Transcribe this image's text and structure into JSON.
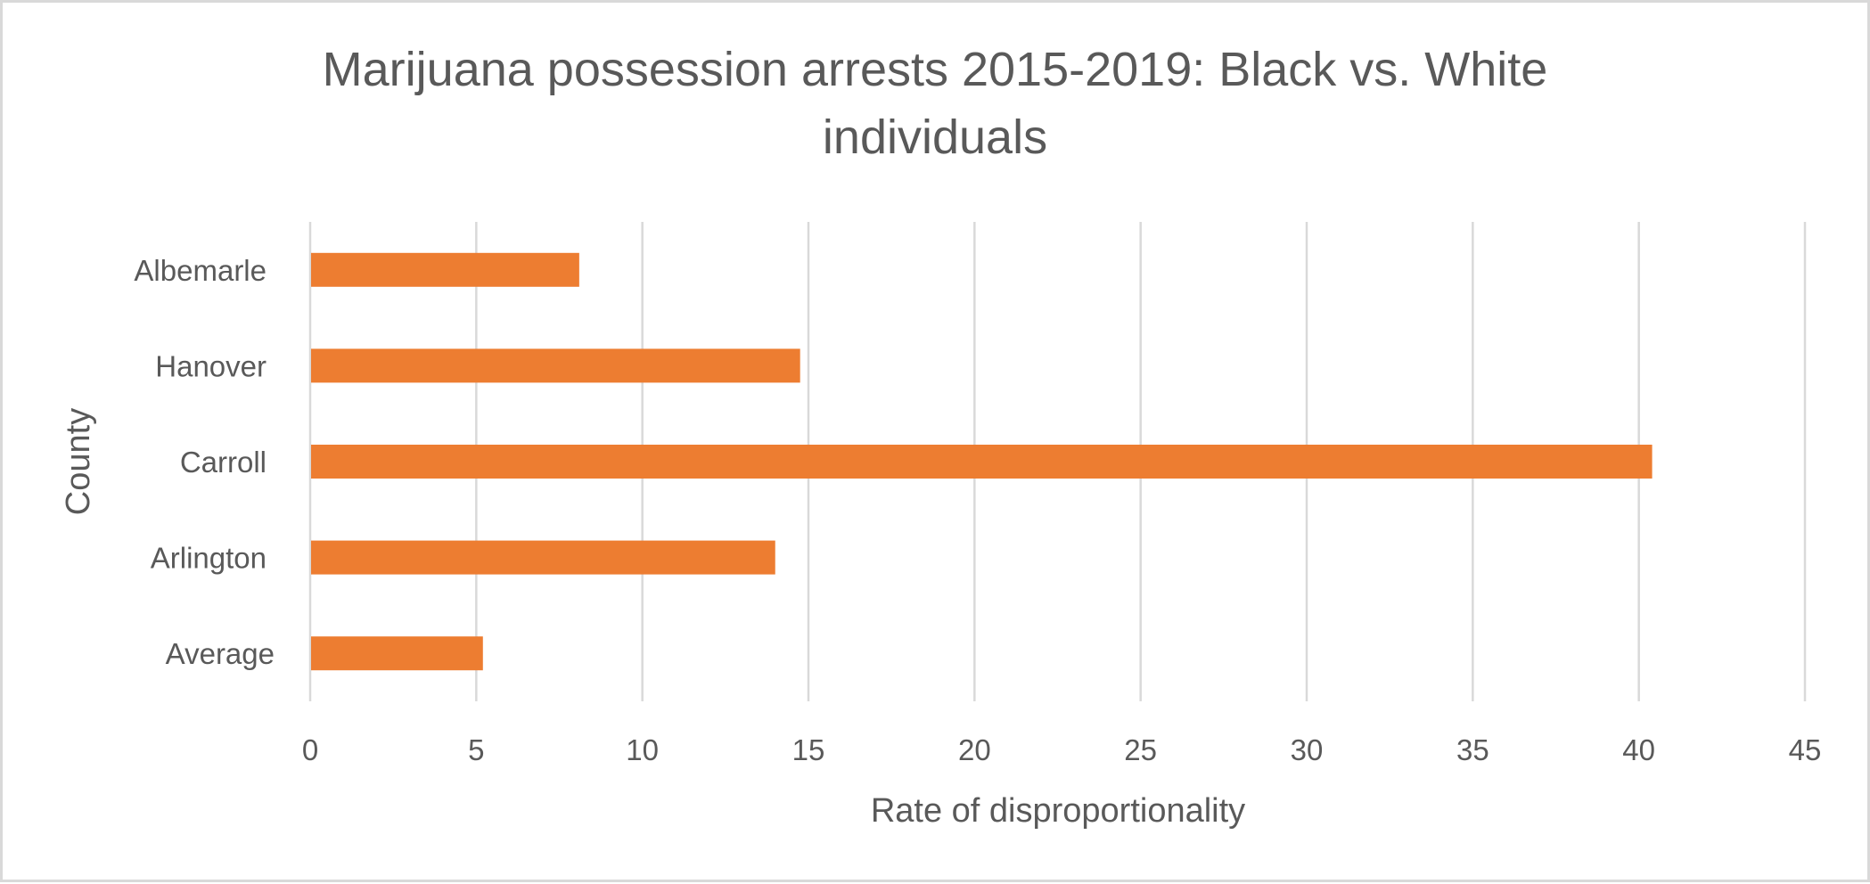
{
  "chart_data": {
    "type": "bar",
    "orientation": "horizontal",
    "title": "Marijuana possession arrests 2015-2019: Black vs. White individuals",
    "title_lines": [
      "Marijuana possession arrests 2015-2019: Black vs. White",
      "individuals"
    ],
    "xlabel": "Rate of disproportionality",
    "ylabel": "County",
    "categories": [
      "Albemarle",
      "Hanover",
      "Carroll",
      "Arlington",
      "Average"
    ],
    "values": [
      8.1,
      14.75,
      40.4,
      14.0,
      5.2
    ],
    "xlim": [
      0,
      45
    ],
    "xticks": [
      0,
      5,
      10,
      15,
      20,
      25,
      30,
      35,
      40,
      45
    ],
    "xtick_labels": [
      "0",
      "5",
      "10",
      "15",
      "20",
      "25",
      "30",
      "35",
      "40",
      "45"
    ],
    "grid": "vertical",
    "legend": "none",
    "colors": {
      "bar": "#ED7D31",
      "grid": "#D9D9D9",
      "text": "#595959",
      "border": "#D9D9D9"
    }
  }
}
